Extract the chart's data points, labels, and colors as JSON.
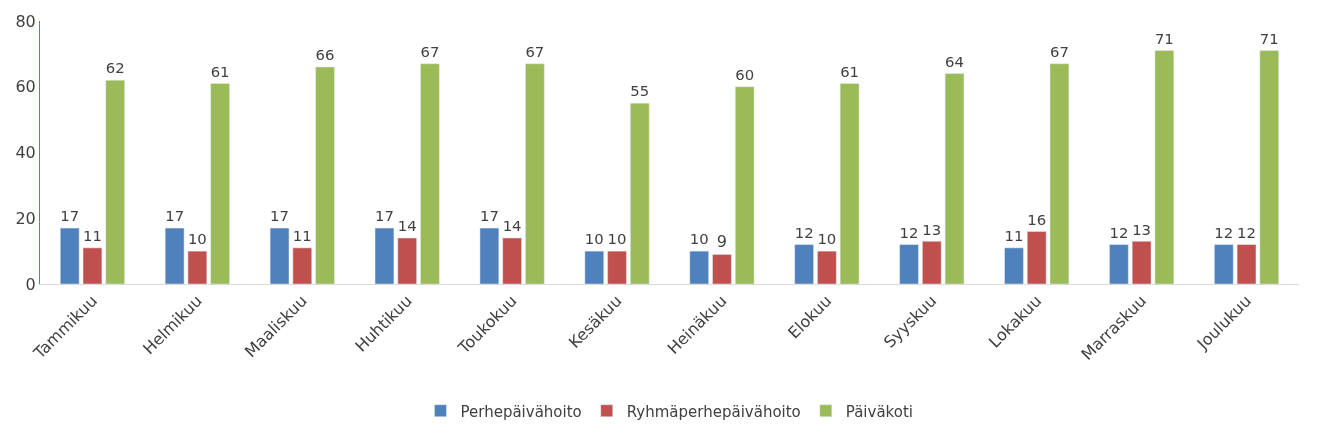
{
  "chart_data": {
    "type": "bar",
    "categories": [
      "Tammikuu",
      "Helmikuu",
      "Maaliskuu",
      "Huhtikuu",
      "Toukokuu",
      "Kesäkuu",
      "Heinäkuu",
      "Elokuu",
      "Syyskuu",
      "Lokakuu",
      "Marraskuu",
      "Joulukuu"
    ],
    "series": [
      {
        "name": "Perhepäivähoito",
        "color": "#4f81bd",
        "values": [
          17,
          17,
          17,
          17,
          17,
          10,
          10,
          12,
          12,
          11,
          12,
          12
        ]
      },
      {
        "name": "Ryhmäperhepäivähoito",
        "color": "#c0504d",
        "values": [
          11,
          10,
          11,
          14,
          14,
          10,
          9,
          10,
          13,
          16,
          13,
          12
        ]
      },
      {
        "name": "Päiväkoti",
        "color": "#9bbb59",
        "values": [
          62,
          61,
          66,
          67,
          67,
          55,
          60,
          61,
          64,
          67,
          71,
          71
        ]
      }
    ],
    "ylim": [
      0,
      80
    ],
    "yticks": [
      0,
      20,
      40,
      60,
      80
    ],
    "legend": "bottom",
    "data_labels": true
  }
}
